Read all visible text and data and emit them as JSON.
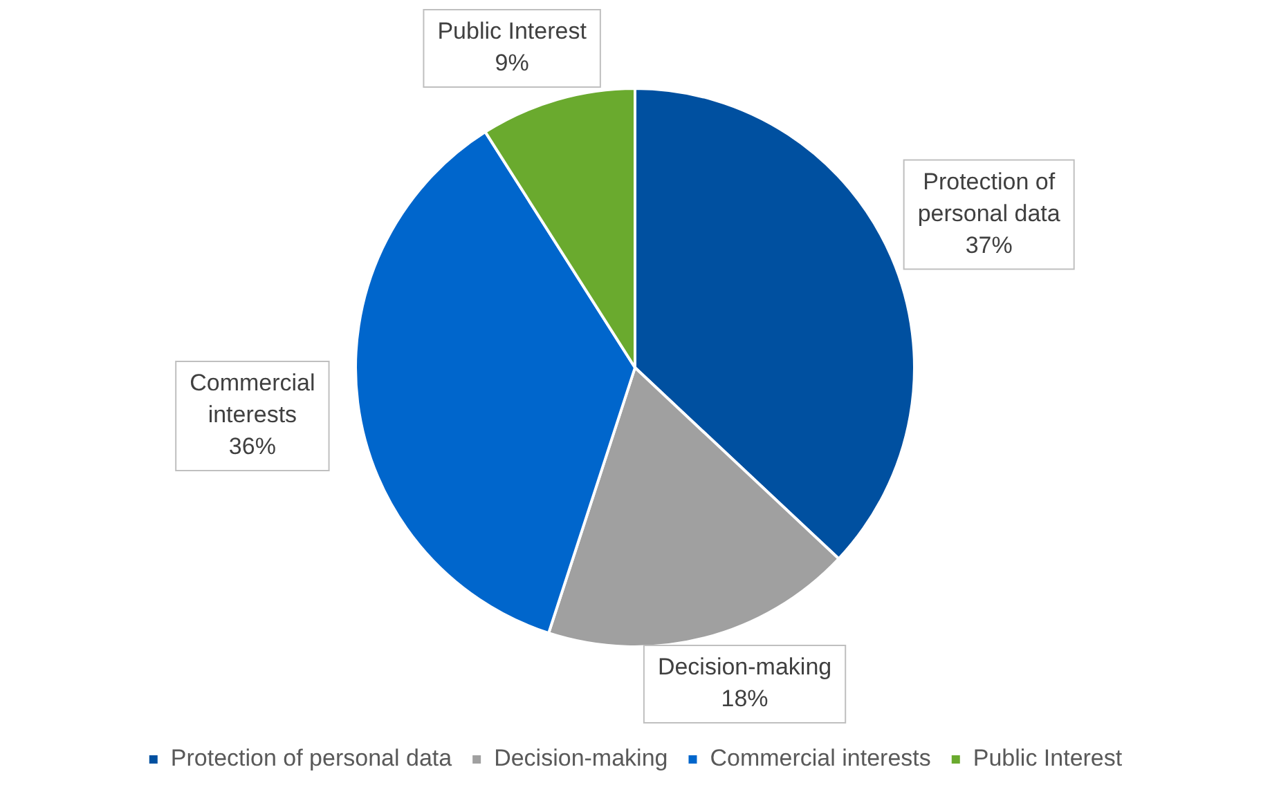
{
  "chart_data": {
    "type": "pie",
    "categories": [
      "Protection of personal data",
      "Decision-making",
      "Commercial interests",
      "Public Interest"
    ],
    "values": [
      37,
      18,
      36,
      9
    ],
    "value_labels": [
      "37%",
      "18%",
      "36%",
      "9%"
    ],
    "colors": [
      "#0050a0",
      "#a0a0a0",
      "#0066cc",
      "#6aaa2e"
    ],
    "legend": "bottom"
  }
}
